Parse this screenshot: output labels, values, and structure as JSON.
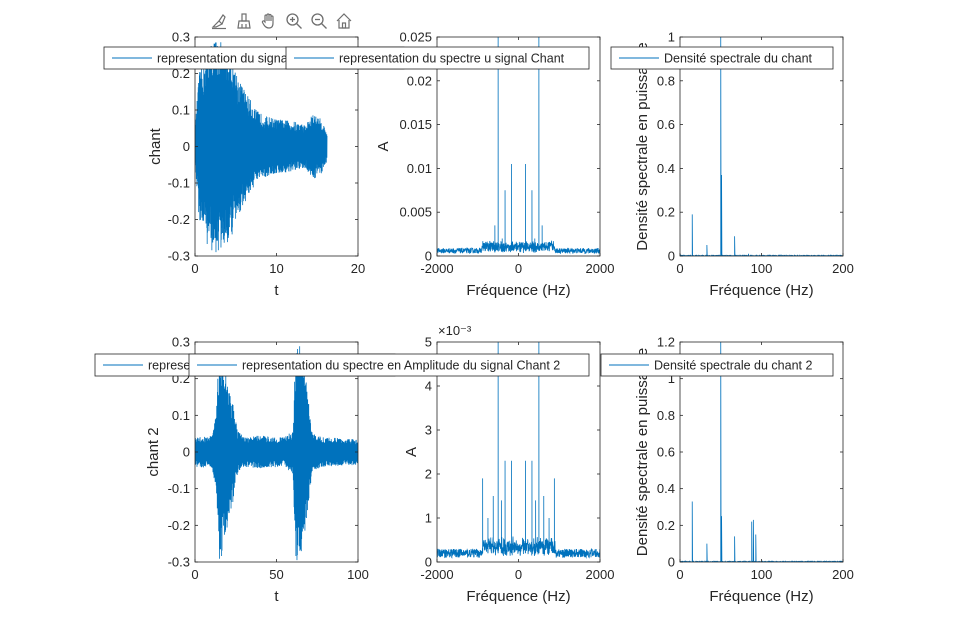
{
  "toolbar": {
    "tools": [
      {
        "name": "brush-data-icon"
      },
      {
        "name": "brush-icon"
      },
      {
        "name": "pan-hand-icon"
      },
      {
        "name": "zoom-in-icon"
      },
      {
        "name": "zoom-out-icon"
      },
      {
        "name": "home-icon"
      }
    ]
  },
  "colors": {
    "line": "#0072BD",
    "axis": "#262626",
    "text": "#262626"
  },
  "chart_data": [
    {
      "type": "line",
      "signal": "chant",
      "xlim": [
        0,
        20
      ],
      "ylim": [
        -0.3,
        0.3
      ],
      "xticks": [
        0,
        10,
        20
      ],
      "yticks": [
        -0.3,
        -0.2,
        -0.1,
        0,
        0.1,
        0.2,
        0.3
      ],
      "xlabel": "t",
      "ylabel": "chant",
      "title": "",
      "legend": "representation du signal Chant",
      "legend_position": "top",
      "envelope": [
        [
          0,
          0.05
        ],
        [
          0.5,
          0.2
        ],
        [
          1.5,
          0.27
        ],
        [
          2.5,
          0.3
        ],
        [
          3.5,
          0.28
        ],
        [
          4.5,
          0.25
        ],
        [
          5.5,
          0.18
        ],
        [
          6.5,
          0.14
        ],
        [
          7.5,
          0.1
        ],
        [
          8.5,
          0.085
        ],
        [
          10,
          0.075
        ],
        [
          12,
          0.07
        ],
        [
          13.5,
          0.06
        ],
        [
          14.5,
          0.09
        ],
        [
          15.5,
          0.075
        ],
        [
          16.2,
          0.04
        ]
      ],
      "x_end": 16.2
    },
    {
      "type": "line",
      "signal": "spectre chant",
      "xlim": [
        -2000,
        2000
      ],
      "ylim": [
        0,
        0.025
      ],
      "xticks": [
        -2000,
        0,
        2000
      ],
      "yticks": [
        0,
        0.005,
        0.01,
        0.015,
        0.02,
        0.025
      ],
      "xlabel": "Fréquence (Hz)",
      "ylabel": "A",
      "title": "",
      "legend": "representation du spectre u signal Chant",
      "legend_position": "top",
      "peaks": [
        [
          -500,
          0.025
        ],
        [
          500,
          0.025
        ],
        [
          -330,
          0.0075
        ],
        [
          330,
          0.0075
        ],
        [
          -170,
          0.0105
        ],
        [
          170,
          0.0105
        ],
        [
          -580,
          0.0035
        ],
        [
          580,
          0.0035
        ],
        [
          -750,
          0.0012
        ],
        [
          750,
          0.0012
        ],
        [
          -400,
          0.002
        ],
        [
          400,
          0.002
        ]
      ],
      "floor": 0.0006
    },
    {
      "type": "line",
      "signal": "densite chant",
      "xlim": [
        0,
        200
      ],
      "ylim": [
        0,
        1
      ],
      "xticks": [
        0,
        100,
        200
      ],
      "yticks": [
        0,
        0.2,
        0.4,
        0.6,
        0.8,
        1
      ],
      "xlabel": "Fréquence (Hz)",
      "ylabel": "Densité spectrale en puissance",
      "title": "",
      "legend": "Densité spectrale du chant",
      "legend_position": "top",
      "peaks": [
        [
          15,
          0.19
        ],
        [
          33,
          0.05
        ],
        [
          50,
          1.0
        ],
        [
          51,
          0.37
        ],
        [
          67,
          0.09
        ],
        [
          84,
          0.01
        ]
      ],
      "x_end": 200
    },
    {
      "type": "line",
      "signal": "chant 2",
      "xlim": [
        0,
        100
      ],
      "ylim": [
        -0.3,
        0.3
      ],
      "xticks": [
        0,
        50,
        100
      ],
      "yticks": [
        -0.3,
        -0.2,
        -0.1,
        0,
        0.1,
        0.2,
        0.3
      ],
      "xlabel": "t",
      "ylabel": "chant 2",
      "title": "",
      "legend": "representation du signal Chant 2",
      "legend_position": "top",
      "envelope": [
        [
          0,
          0.04
        ],
        [
          10,
          0.045
        ],
        [
          13,
          0.1
        ],
        [
          15,
          0.3
        ],
        [
          17,
          0.28
        ],
        [
          20,
          0.2
        ],
        [
          23,
          0.15
        ],
        [
          26,
          0.06
        ],
        [
          30,
          0.04
        ],
        [
          40,
          0.045
        ],
        [
          55,
          0.04
        ],
        [
          60,
          0.06
        ],
        [
          62,
          0.3
        ],
        [
          65,
          0.29
        ],
        [
          68,
          0.2
        ],
        [
          72,
          0.05
        ],
        [
          80,
          0.04
        ],
        [
          100,
          0.035
        ]
      ],
      "x_end": 100
    },
    {
      "type": "line",
      "signal": "spectre chant 2",
      "xlim": [
        -2000,
        2000
      ],
      "ylim": [
        0,
        5
      ],
      "y_exponent": "×10⁻³",
      "xticks": [
        -2000,
        0,
        2000
      ],
      "yticks": [
        0,
        1,
        2,
        3,
        4,
        5
      ],
      "xlabel": "Fréquence (Hz)",
      "ylabel": "A",
      "title": "",
      "legend": "representation du spectre en Amplitude du signal Chant 2",
      "legend_position": "top",
      "peaks": [
        [
          -500,
          5
        ],
        [
          500,
          5
        ],
        [
          -330,
          2.3
        ],
        [
          330,
          2.3
        ],
        [
          -170,
          2.3
        ],
        [
          170,
          2.3
        ],
        [
          -880,
          1.9
        ],
        [
          880,
          1.9
        ],
        [
          -620,
          1.5
        ],
        [
          620,
          1.5
        ],
        [
          -420,
          1.4
        ],
        [
          420,
          1.4
        ],
        [
          -750,
          1.0
        ],
        [
          750,
          1.0
        ]
      ],
      "floor": 0.2
    },
    {
      "type": "line",
      "signal": "densite chant 2",
      "xlim": [
        0,
        200
      ],
      "ylim": [
        0,
        1.2
      ],
      "xticks": [
        0,
        100,
        200
      ],
      "yticks": [
        0,
        0.2,
        0.4,
        0.6,
        0.8,
        1,
        1.2
      ],
      "xlabel": "Fréquence (Hz)",
      "ylabel": "Densité spectrale en puissance",
      "title": "",
      "legend": "Densité spectrale du chant 2",
      "legend_position": "top",
      "peaks": [
        [
          15,
          0.33
        ],
        [
          33,
          0.1
        ],
        [
          50,
          1.2
        ],
        [
          51,
          0.25
        ],
        [
          67,
          0.14
        ],
        [
          88,
          0.22
        ],
        [
          90,
          0.23
        ],
        [
          93,
          0.15
        ]
      ],
      "x_end": 200
    }
  ]
}
